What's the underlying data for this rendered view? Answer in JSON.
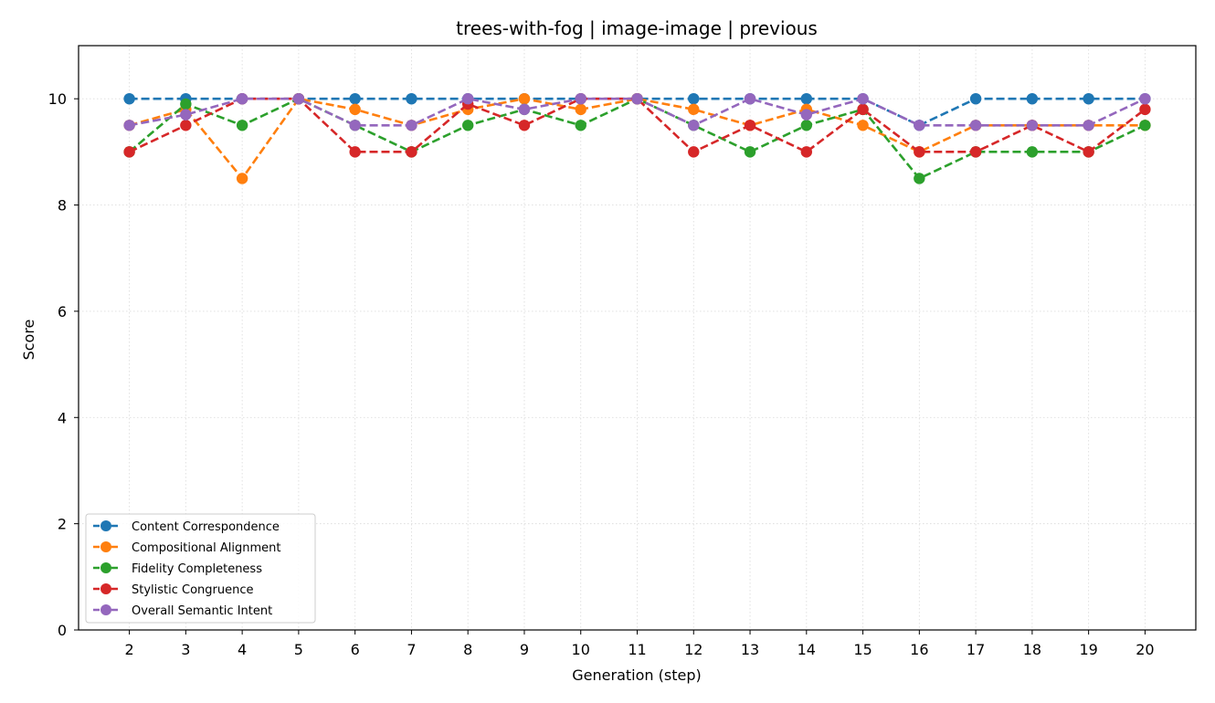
{
  "chart_data": {
    "type": "line",
    "title": "trees-with-fog | image-image | previous",
    "xlabel": "Generation (step)",
    "ylabel": "Score",
    "x": [
      2,
      3,
      4,
      5,
      6,
      7,
      8,
      9,
      10,
      11,
      12,
      13,
      14,
      15,
      16,
      17,
      18,
      19,
      20
    ],
    "xlim": [
      1.1,
      20.9
    ],
    "ylim": [
      0,
      11
    ],
    "yticks": [
      0,
      2,
      4,
      6,
      8,
      10
    ],
    "grid": true,
    "legend_position": "lower-left",
    "series": [
      {
        "name": "Content Correspondence",
        "color": "#1f77b4",
        "values": [
          10,
          10,
          10,
          10,
          10,
          10,
          10,
          10,
          10,
          10,
          10,
          10,
          10,
          10,
          9.5,
          10,
          10,
          10,
          10
        ]
      },
      {
        "name": "Compositional Alignment",
        "color": "#ff7f0e",
        "values": [
          9.5,
          9.8,
          8.5,
          10,
          9.8,
          9.5,
          9.8,
          10,
          9.8,
          10,
          9.8,
          9.5,
          9.8,
          9.5,
          9,
          9.5,
          9.5,
          9.5,
          9.5
        ]
      },
      {
        "name": "Fidelity Completeness",
        "color": "#2ca02c",
        "values": [
          9,
          9.9,
          9.5,
          10,
          9.5,
          9,
          9.5,
          9.8,
          9.5,
          10,
          9.5,
          9,
          9.5,
          9.8,
          8.5,
          9,
          9,
          9,
          9.5
        ]
      },
      {
        "name": "Stylistic Congruence",
        "color": "#d62728",
        "values": [
          9,
          9.5,
          10,
          10,
          9,
          9,
          9.9,
          9.5,
          10,
          10,
          9,
          9.5,
          9,
          9.8,
          9,
          9,
          9.5,
          9,
          9.8
        ]
      },
      {
        "name": "Overall Semantic Intent",
        "color": "#9467bd",
        "values": [
          9.5,
          9.7,
          10,
          10,
          9.5,
          9.5,
          10,
          9.8,
          10,
          10,
          9.5,
          10,
          9.7,
          10,
          9.5,
          9.5,
          9.5,
          9.5,
          10
        ]
      }
    ]
  }
}
